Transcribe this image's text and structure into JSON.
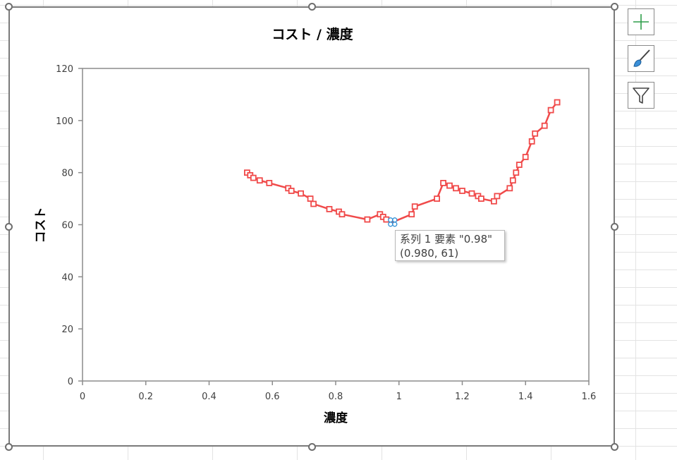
{
  "chart_data": {
    "type": "line",
    "title": "コスト / 濃度",
    "xlabel": "濃度",
    "ylabel": "コスト",
    "xlim": [
      0,
      1.6
    ],
    "ylim": [
      0,
      120
    ],
    "x_ticks": [
      "0",
      "0.2",
      "0.4",
      "0.6",
      "0.8",
      "1",
      "1.2",
      "1.4",
      "1.6"
    ],
    "y_ticks": [
      "0",
      "20",
      "40",
      "60",
      "80",
      "100",
      "120"
    ],
    "grid": false,
    "legend": "none",
    "marker": "square",
    "line_color": "#f04a4a",
    "series": [
      {
        "x": [
          0.52,
          0.53,
          0.54,
          0.56,
          0.59,
          0.65,
          0.66,
          0.69,
          0.72,
          0.73,
          0.78,
          0.81,
          0.82,
          0.9,
          0.94,
          0.95,
          0.96,
          0.98,
          1.04,
          1.05,
          1.12,
          1.14,
          1.16,
          1.18,
          1.2,
          1.23,
          1.25,
          1.26,
          1.3,
          1.31,
          1.35,
          1.36,
          1.37,
          1.38,
          1.4,
          1.42,
          1.43,
          1.46,
          1.48,
          1.5
        ],
        "y": [
          80,
          79,
          78,
          77,
          76,
          74,
          73,
          72,
          70,
          68,
          66,
          65,
          64,
          62,
          64,
          63,
          62,
          61,
          64,
          67,
          70,
          76,
          75,
          74,
          73,
          72,
          71,
          70,
          69,
          71,
          74,
          77,
          80,
          83,
          86,
          92,
          95,
          98,
          104,
          107
        ]
      }
    ]
  },
  "tooltip": {
    "line1": "系列 1 要素 \"0.98\"",
    "line2": "(0.980, 61)"
  },
  "side_buttons": {
    "elements": "plus-icon",
    "styles": "paintbrush-icon",
    "filters": "funnel-icon"
  }
}
